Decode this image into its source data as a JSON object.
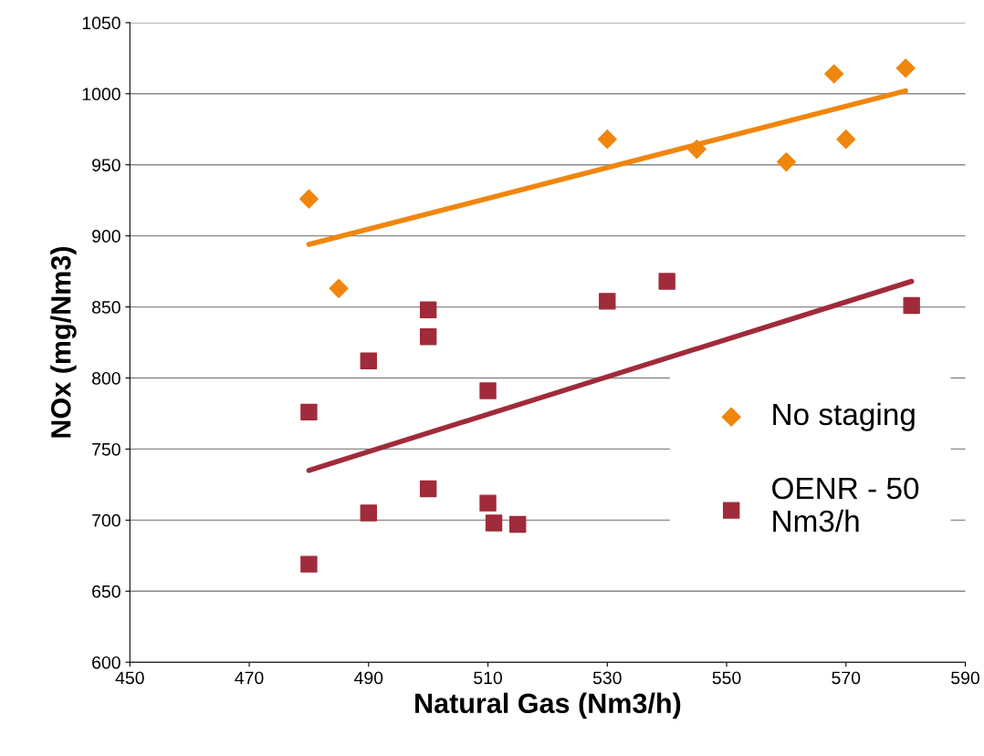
{
  "chart_data": {
    "type": "scatter",
    "xlabel": "Natural Gas (Nm3/h)",
    "ylabel": "NOx (mg/Nm3)",
    "xlim": [
      450,
      590
    ],
    "xticks": [
      450,
      470,
      490,
      510,
      530,
      550,
      570,
      590
    ],
    "ylim": [
      600,
      1050
    ],
    "yticks": [
      600,
      650,
      700,
      750,
      800,
      850,
      900,
      950,
      1000,
      1050
    ],
    "grid": "y",
    "legend": "right",
    "series": [
      {
        "name": "No staging",
        "marker": "diamond",
        "color": "#f0860e",
        "x": [
          480,
          485,
          530,
          545,
          560,
          568,
          570,
          580
        ],
        "values": [
          926,
          863,
          968,
          961,
          952,
          1014,
          968,
          1018
        ]
      },
      {
        "name": "OENR - 50\nNm3/h",
        "marker": "square",
        "color": "#a02b3a",
        "x": [
          480,
          480,
          490,
          490,
          500,
          500,
          500,
          510,
          510,
          511,
          515,
          530,
          540,
          581
        ],
        "values": [
          776,
          669,
          812,
          705,
          848,
          829,
          722,
          791,
          712,
          698,
          697,
          854,
          868,
          851
        ]
      },
      {
        "type": "line",
        "marker": "none",
        "color": "#f0860e",
        "x": [
          480,
          580
        ],
        "values": [
          894,
          1002
        ]
      },
      {
        "type": "line",
        "marker": "none",
        "color": "#a02b3a",
        "x": [
          480,
          581
        ],
        "values": [
          735,
          868
        ]
      }
    ]
  }
}
